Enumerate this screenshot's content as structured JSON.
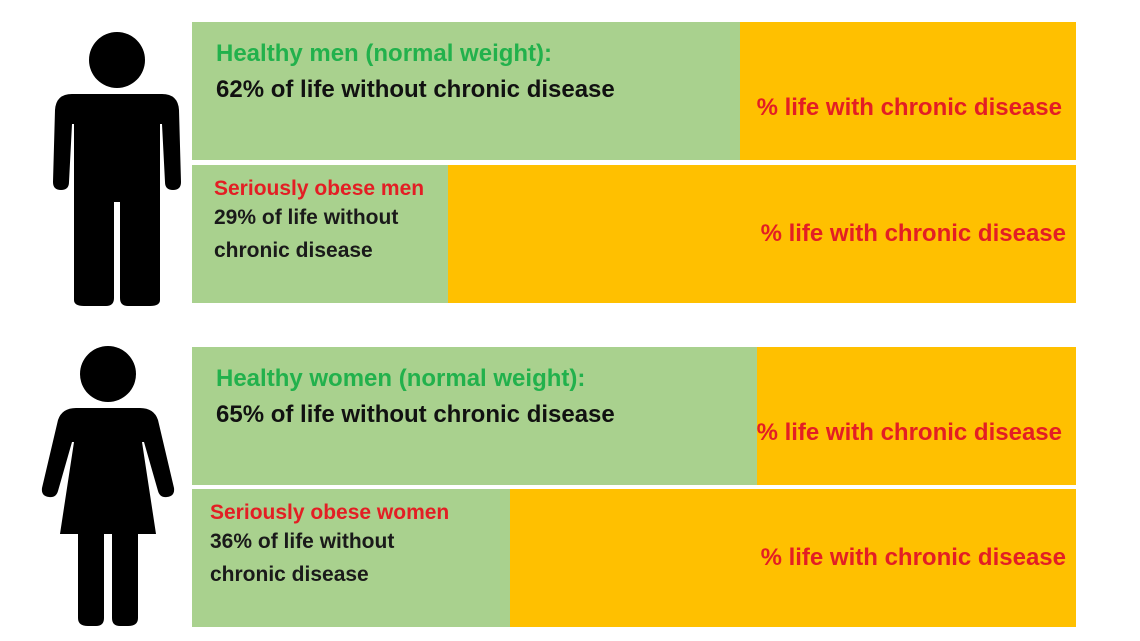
{
  "chart_data": {
    "type": "bar",
    "orientation": "horizontal",
    "stacked": true,
    "categories": [
      "Healthy men (normal weight)",
      "Seriously obese men",
      "Healthy women (normal weight)",
      "Seriously obese women"
    ],
    "series": [
      {
        "name": "% of life without chronic disease",
        "values": [
          62,
          29,
          65,
          36
        ],
        "color": "#a9d18e"
      },
      {
        "name": "% life with chronic disease",
        "values": [
          38,
          71,
          35,
          64
        ],
        "color": "#ffc000"
      }
    ],
    "xlim": [
      0,
      100
    ]
  },
  "bars": [
    {
      "title": "Healthy men (normal weight):",
      "line1": "62% of life without chronic disease",
      "line2": "",
      "right_label": "% life with chronic disease",
      "pct": 62
    },
    {
      "title": "Seriously obese men",
      "line1": "29% of life without",
      "line2": "chronic disease",
      "right_label": "% life with chronic disease",
      "pct": 29
    },
    {
      "title": "Healthy women (normal weight):",
      "line1": "65% of life without chronic disease",
      "line2": "",
      "right_label": "% life with chronic disease",
      "pct": 65
    },
    {
      "title": "Seriously obese women",
      "line1": "36% of life without",
      "line2": "chronic disease",
      "right_label": "% life with chronic disease",
      "pct": 36
    }
  ],
  "icons": {
    "men": "man-silhouette-icon",
    "women": "woman-silhouette-icon"
  },
  "colors": {
    "green": "#a9d18e",
    "yellow": "#ffc000",
    "title_green": "#22b14c",
    "title_red": "#e31e24"
  }
}
